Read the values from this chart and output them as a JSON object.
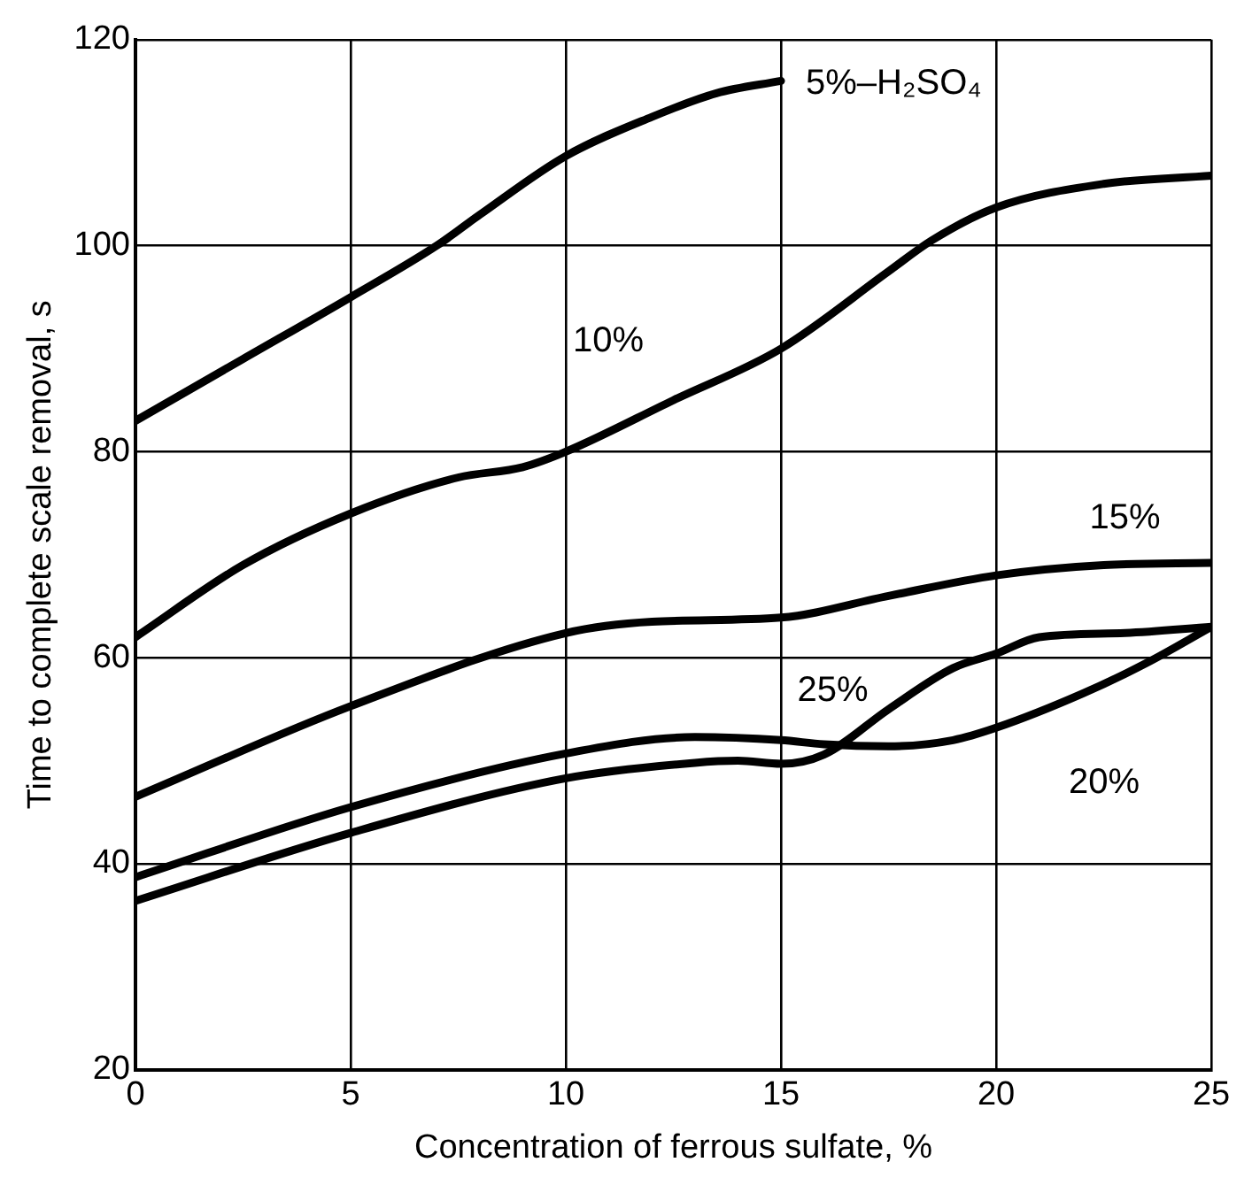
{
  "chart_data": {
    "type": "line",
    "xlabel": "Concentration of ferrous sulfate, %",
    "ylabel": "Time to complete scale removal, s",
    "xlim": [
      0,
      25
    ],
    "xticks": [
      0,
      5,
      10,
      15,
      20,
      25
    ],
    "ylim": [
      20,
      120
    ],
    "yticks": [
      20,
      40,
      60,
      80,
      100,
      120
    ],
    "grid": true,
    "legend": false,
    "marker": "none",
    "line_style": "solid",
    "series": [
      {
        "name": "5%–H₂SO₄",
        "color": "#000000",
        "x": [
          0,
          2.5,
          5,
          7,
          8,
          10,
          12,
          13.5,
          15
        ],
        "values": [
          83,
          89,
          95,
          100,
          103,
          108.7,
          112.5,
          114.8,
          116
        ]
      },
      {
        "name": "10%",
        "color": "#000000",
        "x": [
          0,
          2.5,
          5,
          7.5,
          9,
          10,
          12.5,
          15,
          17.5,
          18.5,
          20,
          22.5,
          25
        ],
        "values": [
          62,
          69,
          74,
          77.5,
          78.5,
          80,
          85,
          90,
          97.5,
          100.5,
          103.7,
          106,
          106.8
        ]
      },
      {
        "name": "15%",
        "color": "#000000",
        "x": [
          0,
          5,
          10,
          12,
          15,
          17.5,
          20,
          22.5,
          25
        ],
        "values": [
          46.5,
          55.3,
          62.4,
          63.5,
          63.9,
          66,
          68,
          69,
          69.2
        ]
      },
      {
        "name": "20%",
        "color": "#000000",
        "x": [
          0,
          5,
          10,
          13,
          15,
          16,
          17.5,
          19,
          20,
          22,
          23.5,
          25
        ],
        "values": [
          38.7,
          45.5,
          50.7,
          52.3,
          52,
          51.6,
          51.4,
          52,
          53.2,
          56.5,
          59.5,
          63
        ]
      },
      {
        "name": "25%",
        "color": "#000000",
        "x": [
          0,
          5,
          10,
          13,
          14,
          15,
          16,
          17.5,
          19,
          20,
          21,
          23,
          25
        ],
        "values": [
          36.4,
          43,
          48.3,
          49.8,
          50,
          49.7,
          50.6,
          55,
          59,
          60.4,
          62,
          62.4,
          63
        ]
      }
    ]
  }
}
